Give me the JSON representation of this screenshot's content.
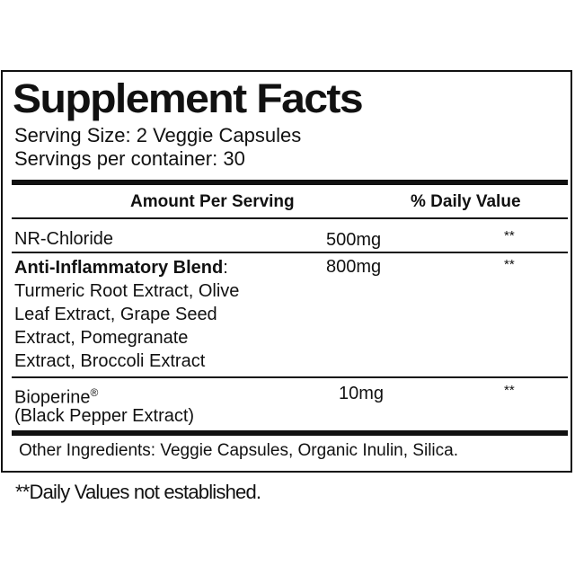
{
  "title": "Supplement Facts",
  "serving_size": "Serving Size: 2 Veggie Capsules",
  "servings_per_container": "Servings per container: 30",
  "header": {
    "amount": "Amount Per Serving",
    "daily_value": "% Daily Value"
  },
  "rows": [
    {
      "name": "NR-Chloride",
      "amount": "500mg",
      "dv": "**"
    },
    {
      "name": "Anti-Inflammatory Blend",
      "name_suffix": ":",
      "amount": "800mg",
      "dv": "**",
      "lines": [
        "Turmeric Root Extract, Olive",
        "Leaf Extract, Grape Seed",
        "Extract, Pomegranate",
        "Extract, Broccoli Extract"
      ]
    },
    {
      "name": "Bioperine",
      "mark": "®",
      "amount": "10mg",
      "dv": "**",
      "lines": [
        "(Black Pepper Extract)"
      ]
    }
  ],
  "other_ingredients": "Other Ingredients: Veggie Capsules, Organic Inulin, Silica.",
  "footnote": "**Daily Values not established."
}
